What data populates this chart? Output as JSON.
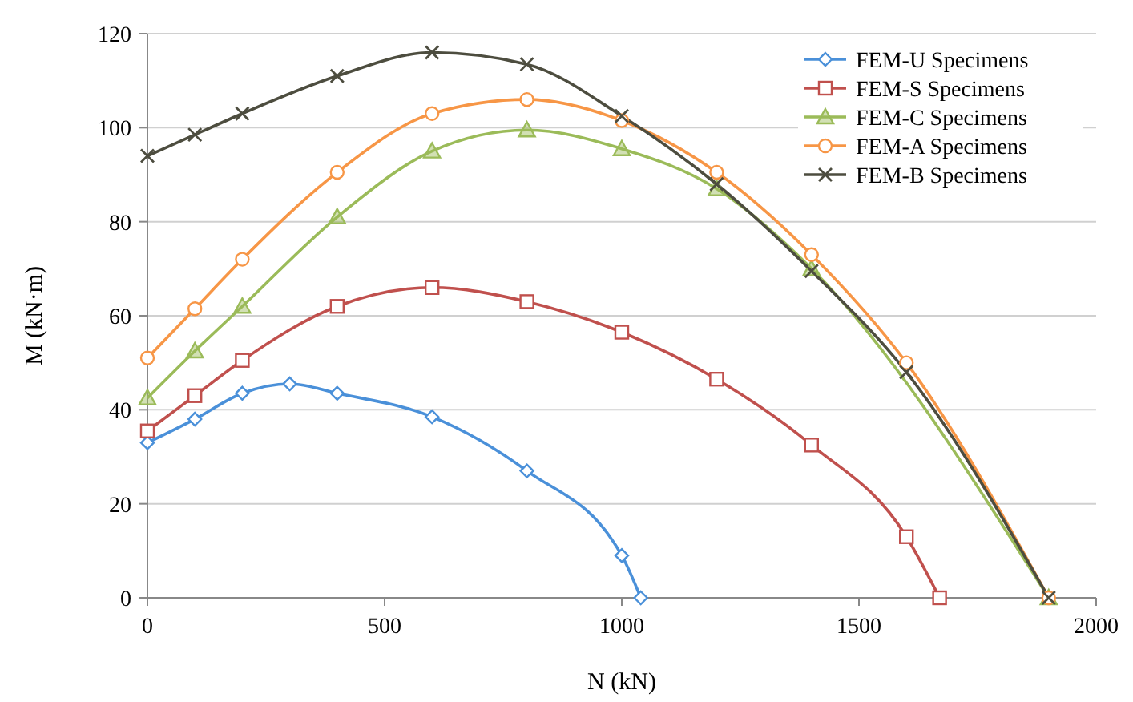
{
  "chart_data": {
    "type": "line",
    "xlabel": "N (kN)",
    "ylabel": "M (kN·m)",
    "xlim": [
      0,
      2000
    ],
    "xticks": [
      0,
      500,
      1000,
      1500,
      2000
    ],
    "ylim": [
      0,
      120
    ],
    "yticks": [
      0,
      20,
      40,
      60,
      80,
      100,
      120
    ],
    "grid": "y",
    "legend": "top right",
    "series": [
      {
        "name": "FEM-U Specimens",
        "color": "#4a90d9",
        "marker": "diamond",
        "x": [
          0,
          100,
          200,
          300,
          400,
          600,
          800,
          1000,
          1040
        ],
        "values": [
          33,
          38,
          43.5,
          45.5,
          43.5,
          38.5,
          27,
          9,
          0
        ]
      },
      {
        "name": "FEM-S Specimens",
        "color": "#c0504d",
        "marker": "square",
        "x": [
          0,
          100,
          200,
          400,
          600,
          800,
          1000,
          1200,
          1400,
          1600,
          1670
        ],
        "values": [
          35.5,
          43,
          50.5,
          62,
          66,
          63,
          56.5,
          46.5,
          32.5,
          13,
          0
        ]
      },
      {
        "name": "FEM-C Specimens",
        "color": "#9bbb59",
        "marker": "triangle",
        "x": [
          0,
          100,
          200,
          400,
          600,
          800,
          1000,
          1200,
          1400,
          1600,
          1900
        ],
        "values": [
          42.5,
          52.5,
          62,
          81,
          95,
          99.5,
          95.5,
          87,
          70,
          null,
          0
        ]
      },
      {
        "name": "FEM-A Specimens",
        "color": "#f79646",
        "marker": "circle",
        "x": [
          0,
          100,
          200,
          400,
          600,
          800,
          1000,
          1200,
          1400,
          1600,
          1900
        ],
        "values": [
          51,
          61.5,
          72,
          90.5,
          103,
          106,
          101.5,
          90.5,
          73,
          50,
          0
        ]
      },
      {
        "name": "FEM-B Specimens",
        "color": "#4d4d3f",
        "marker": "cross",
        "x": [
          0,
          100,
          200,
          400,
          600,
          800,
          1000,
          1200,
          1400,
          1600,
          1900
        ],
        "values": [
          94,
          98.5,
          103,
          111,
          116,
          113.5,
          102.5,
          88,
          69.5,
          48,
          0
        ]
      }
    ]
  }
}
